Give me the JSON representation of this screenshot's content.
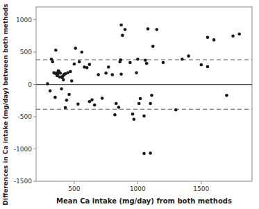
{
  "chart_data": {
    "type": "scatter",
    "xlabel": "Mean Ca intake (mg/day) from both methods",
    "ylabel": "Differences in Ca intake (mg/day) between both methods",
    "x": [
      290,
      310,
      320,
      330,
      340,
      350,
      355,
      360,
      365,
      370,
      375,
      380,
      385,
      390,
      400,
      405,
      410,
      415,
      420,
      430,
      440,
      450,
      460,
      470,
      480,
      500,
      510,
      530,
      540,
      560,
      580,
      600,
      620,
      640,
      660,
      690,
      720,
      750,
      770,
      800,
      830,
      850,
      860,
      865,
      870,
      880,
      900,
      940,
      960,
      970,
      990,
      1000,
      1010,
      1020,
      1050,
      1060,
      1070,
      1080,
      1100,
      1110,
      1120,
      1150,
      1200,
      1300,
      1350,
      1400,
      1500,
      1550,
      1600,
      1700,
      1750,
      1800,
      350,
      430,
      620,
      820,
      870,
      1050,
      1100,
      1550
    ],
    "values": [
      10,
      -100,
      390,
      350,
      180,
      170,
      530,
      175,
      135,
      160,
      210,
      200,
      115,
      175,
      -70,
      105,
      130,
      70,
      155,
      165,
      -245,
      180,
      -155,
      200,
      55,
      315,
      560,
      -305,
      350,
      500,
      270,
      260,
      -265,
      -240,
      -320,
      150,
      -215,
      175,
      270,
      150,
      -295,
      -355,
      350,
      380,
      160,
      760,
      850,
      340,
      -460,
      -540,
      180,
      390,
      -295,
      -220,
      -490,
      375,
      325,
      860,
      -295,
      -170,
      590,
      850,
      340,
      -395,
      390,
      440,
      305,
      275,
      690,
      -170,
      750,
      780,
      -200,
      -360,
      310,
      -470,
      920,
      -1070,
      -1065,
      730
    ],
    "color": "#1a1a1a",
    "reference_lines": [
      {
        "value": -0.93,
        "line_style": "solid",
        "color": "#444444"
      },
      {
        "value": 382.36,
        "line_style": "dashed",
        "color": "#555555"
      },
      {
        "value": -384.22,
        "line_style": "dashed",
        "color": "#555555"
      }
    ],
    "xlim": [
      200,
      1900
    ],
    "ylim": [
      -1500,
      1200
    ],
    "xticks": [
      500,
      1000,
      1500
    ],
    "yticks": [
      -1500,
      -1000,
      -500,
      0,
      500,
      1000
    ],
    "grid": false
  }
}
